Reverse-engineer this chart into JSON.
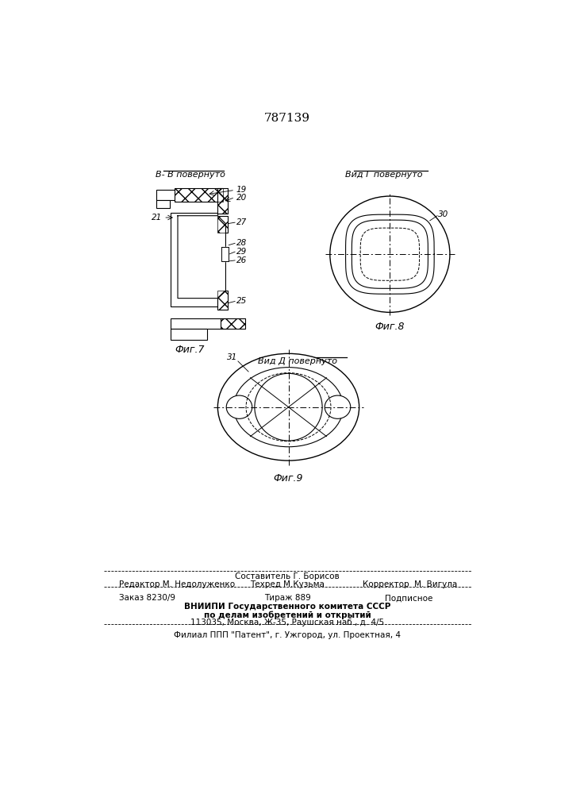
{
  "title_number": "787139",
  "bg_color": "#ffffff",
  "fig7_label": "Фиг.7",
  "fig8_label": "Фиг.8",
  "fig9_label": "Фиг.9",
  "label_BB": "В- В повернуто",
  "label_VidG": "Вид Г повернуто",
  "label_VidD": "Вид Д повернуто",
  "n19": "19",
  "n20": "20",
  "n21": "21",
  "n27": "27",
  "n28": "28",
  "n29": "29",
  "n26": "26",
  "n25": "25",
  "n30": "30",
  "n31": "31",
  "footer_r1_center": "Составитель Г. Борисов",
  "footer_r2_left": "Редактор М. Недолуженко",
  "footer_r2_center": "Техред М.Кузьма",
  "footer_r2_right": "Корректор  М. Вигула",
  "footer_r3_left": "Заказ 8230/9",
  "footer_r3_center": "Тираж 889",
  "footer_r3_right": "Подписное",
  "footer_r4": "ВНИИПИ Государственного комитета СССР",
  "footer_r5": "по делам изобретений и открытий",
  "footer_r6": "113035, Москва, Ж-35, Раушская наб., д. 4/5",
  "footer_r7": "Филиал ППП \"Патент\", г. Ужгород, ул. Проектная, 4"
}
